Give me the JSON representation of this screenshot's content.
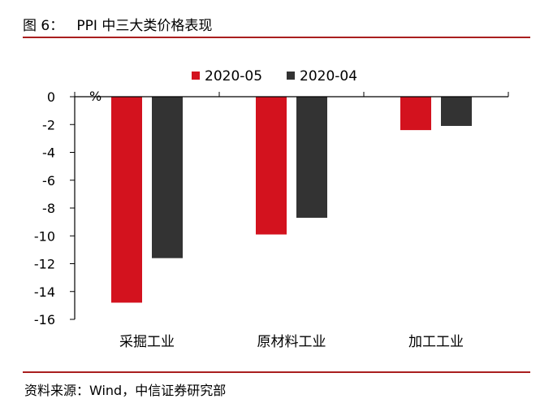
{
  "figure": {
    "title": "图 6：   PPI 中三大类价格表现",
    "source": "资料来源：Wind，中信证券研究部"
  },
  "colors": {
    "rule": "#a91e1e",
    "series_2020_05": "#d3121e",
    "series_2020_04": "#333333"
  },
  "chart_data": {
    "type": "bar",
    "categories": [
      "采掘工业",
      "原材料工业",
      "加工工业"
    ],
    "series": [
      {
        "name": "2020-05",
        "values": [
          -14.8,
          -9.9,
          -2.4
        ]
      },
      {
        "name": "2020-04",
        "values": [
          -11.6,
          -8.7,
          -2.1
        ]
      }
    ],
    "ylabel": "%",
    "ylim": [
      -16,
      0
    ],
    "yticks": [
      "0",
      "-2",
      "-4",
      "-6",
      "-8",
      "-10",
      "-12",
      "-14",
      "-16"
    ],
    "grid": false,
    "legend_position": "top-center"
  }
}
